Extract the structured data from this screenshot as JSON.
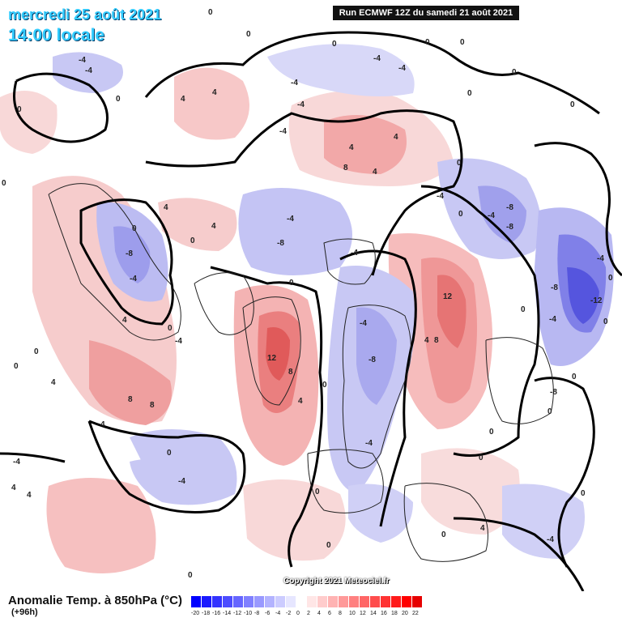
{
  "header": {
    "date": "mercredi 25 août 2021",
    "time": "14:00 locale",
    "run": "Run ECMWF 12Z du samedi 21 août 2021"
  },
  "footer": {
    "title": "Anomalie Temp. à 850hPa (°C)",
    "subtitle": "(+96h)",
    "copyright": "Copyright 2021 Meteociel.fr"
  },
  "scale": {
    "labels": [
      "-20",
      "-18",
      "-16",
      "-14",
      "-12",
      "-10",
      "-8",
      "-6",
      "-4",
      "-2",
      "0",
      "2",
      "4",
      "6",
      "8",
      "10",
      "12",
      "14",
      "16",
      "18",
      "20",
      "22"
    ],
    "colors": [
      "#0000ff",
      "#1a1aff",
      "#3333ff",
      "#4d4dff",
      "#6666ff",
      "#8080ff",
      "#9999ff",
      "#b3b3ff",
      "#ccccff",
      "#e6e6ff",
      "#ffffff",
      "#ffe6e6",
      "#ffcccc",
      "#ffb3b3",
      "#ff9999",
      "#ff8080",
      "#ff6666",
      "#ff4d4d",
      "#ff3333",
      "#ff1a1a",
      "#ff0000",
      "#e60000"
    ]
  },
  "map_labels": [
    "0",
    "-4",
    "4",
    "-8",
    "8",
    "12",
    "-12"
  ]
}
